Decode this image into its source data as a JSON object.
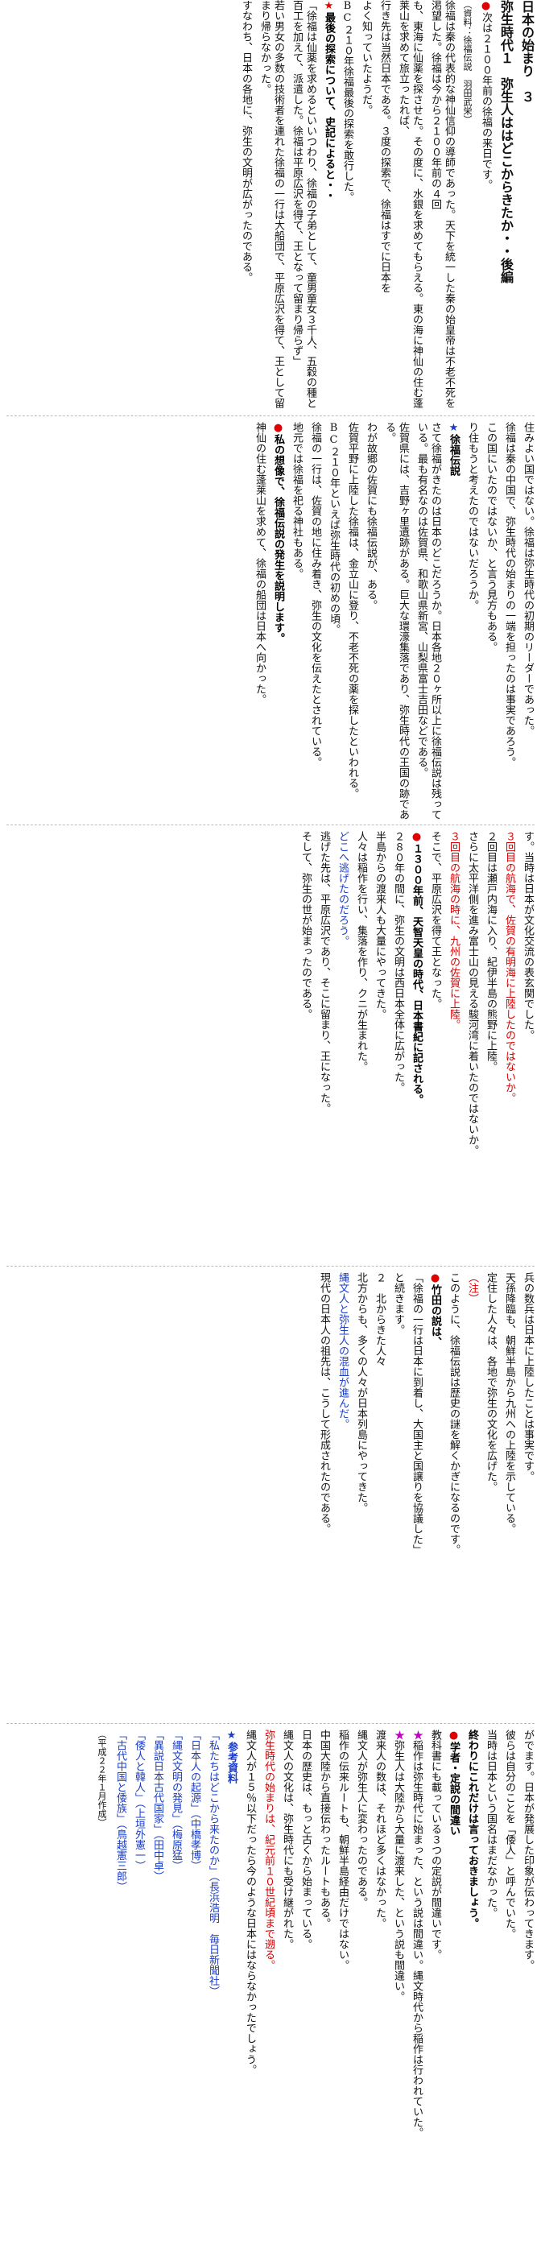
{
  "band1": {
    "series": "日本の始まり　３",
    "title": "弥生時代１　弥生人ははどこからきたか・・後編",
    "intro": "次は２１００年前の徐福の来日です。",
    "source": "（資料：徐福伝説　羽田武栄）",
    "p1": "徐福は秦の代表的な神仙信仰の導師であった。天下を統一した秦の始皇帝は不老不死を渇望した。徐福は今から２１００年前の４回",
    "p2": "も、東海に仙薬を探させた。その度に、水銀を求めてもらえる。東の海に神仙の住む蓬莱山を求めて旅立ったれば、",
    "p3": "行き先は当然日本である。３度の探索で、徐福はすでに日本を",
    "p4": "よく知っていたようだ。",
    "p5": "BC２１０年徐福最後の探索を敢行した。",
    "heading": "最後の探索について、史記によると・・",
    "p6": "「徐福は仙薬を求めるといいつわり、徐福の子弟として、童男童女３千人、五穀の種と百工を加えて、派遣した。徐福は平原広沢を得て、王となって留まり帰らず」",
    "p7": "若い男女の多数の技術者を連れた徐福の一行は大船団で、平原広沢を得て、王として留まり帰らなかった。",
    "p8": "すなわち、日本の各地に、弥生の文明が広がったのである。"
  },
  "band2": {
    "c1": "住みよい国ではない。徐福は弥生時代の初期のリーダーであった。",
    "c2": "徐福は秦の中国で、弥生時代の始まりの一端を担ったのは事実であろう。",
    "c3": "この国にいたのではないか、と言う見方もある。",
    "c4": "り住もうと考えたのではないだろうか。",
    "heading": "徐福伝説",
    "c5": "さて徐福がきたのは日本のどこだろうか。日本各地２０ヶ所以上に徐福伝説は残っている。最も有名なのは佐賀県、和歌山県新宮、山梨県富士吉田などである。",
    "c6": "佐賀県には、吉野ヶ里遺跡がある。巨大な環濠集落であり、弥生時代の王国の跡である。",
    "c7": "わが故郷の佐賀にも徐福伝説が、ある。",
    "c8": "佐賀平野に上陸した徐福は、金立山に登り、不老不死の薬を探したといわれる。",
    "c9": "BC２１０年といえば弥生時代の初めの頃。",
    "c10": "徐福の一行は、佐賀の地に住み着き、弥生の文化を伝えたとされている。",
    "c11": "地元では徐福を祀る神社もある。",
    "heading2": "私の想像で、徐福伝説の発生を説明します。",
    "c12": "神仙の住む蓬莱山を求めて、徐福の船団は日本へ向かった。"
  },
  "band3": {
    "c1": "す。当時は日本が文化交流の表玄関でした。",
    "c2": "３回目の航海で、佐賀の有明海に上陸したのではないか。",
    "c3": "２回目は瀬戸内海に入り、紀伊半島の熊野に上陸。",
    "c4": "さらに太平洋側を進み富士山の見える駿河湾に着いたのではないか。",
    "c5": "３回目の航海の時に、九州の佐賀に上陸。",
    "c6": "そこで、平原広沢を得て王となった。",
    "heading": "１３００年前、天智天皇の時代、日本書紀に記される。",
    "c7": "２８０年の間に、弥生の文明は西日本全体に広がった。",
    "c8": "半島からの渡来人も大量にやってきた。",
    "c9": "人々は稲作を行い、集落を作り、クニが生まれた。",
    "c10": "どこへ逃げたのだろう。",
    "c11": "逃げた先は、平原広沢であり、そこに留まり、王になった。",
    "c12": "そして、弥生の世が始まったのである。"
  },
  "band4": {
    "c1": "兵の数兵は日本に上陸したことは事実です。",
    "c2": "天孫降臨も、朝鮮半島から九州への上陸を示している。",
    "c3": "定住した人々は、各地で弥生の文化を広げた。",
    "c4": "（注）",
    "c5": "このように、徐福伝説は歴史の謎を解くかぎになるのです。",
    "heading": "竹田の説は、",
    "c6": "「徐福の一行は日本に到着し、大国主と国譲りを協議した」",
    "c7": "と続きます。",
    "c8": "２　北からきた人々",
    "c9": "北方からも、多くの人々が日本列島にやってきた。",
    "c10": "縄文人と弥生人の混血が進んだ。",
    "c11": "現代の日本人の祖先は、こうして形成されたのである。"
  },
  "band5": {
    "c1": "がでます。日本が発展した印象が伝わってきます。",
    "c2": "彼らは自分のことを「倭人」と呼んでいた。",
    "c3": "当時は日本という国名はまだなかった。",
    "heading1": "終わりにこれだけは言っておきましょう。",
    "heading2": "学者・定説の間違い",
    "c4": "教科書にも載っている３つの定説が間違いです。",
    "c5": "稲作は弥生時代に始まった、という説は間違い。縄文時代から稲作は行われていた。",
    "c6": "弥生人は大陸から大量に渡来した、という説も間違い。",
    "c7": "渡来人の数は、それほど多くはなかった。",
    "c8": "縄文人が弥生人に変わったのである。",
    "c9": "稲作の伝来ルートも、朝鮮半島経由だけではない。",
    "c10": "中国大陸から直接伝わったルートもある。",
    "c11": "日本の歴史は、もっと古くから始まっている。",
    "c12": "縄文人の文化は、弥生時代にも受け継がれた。",
    "c13": "弥生時代の始まりは、紀元前１０世紀頃まで遡る。",
    "c14": "縄文人が１５％以下だったら今のような日本にはならなかったでしょう。",
    "ref_heading": "参考資料",
    "ref1": "「私たちはどこから来たのか」（長浜浩明　毎日新聞社）",
    "ref2": "「日本人の起源」（中橋孝博）",
    "ref3": "「縄文文明の発見」（梅原猛）",
    "ref4": "「異説日本古代国家」（田中卓）",
    "ref5": "「倭人と韓人」（上垣外憲一）",
    "ref6": "「古代中国と倭族」（鳥越憲三郎）",
    "date": "（平成２２年１月作成）"
  }
}
